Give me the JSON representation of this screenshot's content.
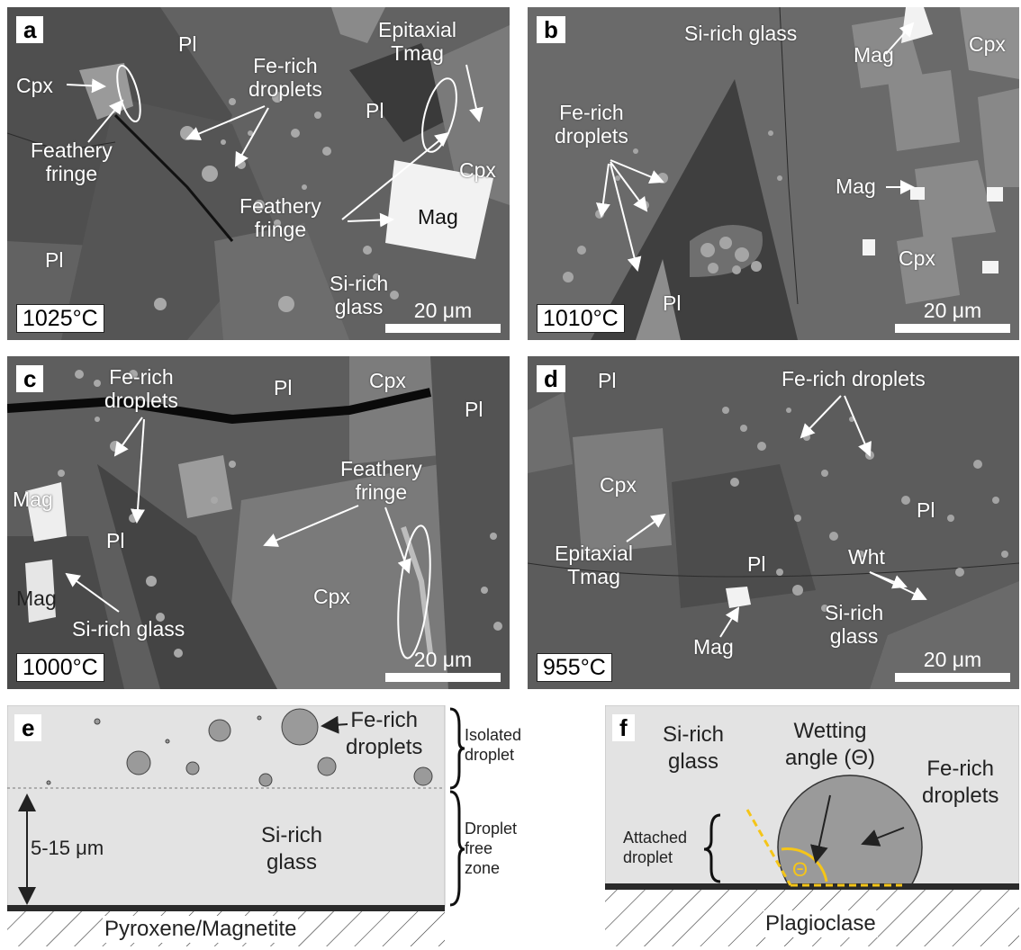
{
  "panels": {
    "a": {
      "letter": "a",
      "temp": "1025°C",
      "scale": "20 μm",
      "labels": {
        "pl_top": "Pl",
        "cpx_left": "Cpx",
        "fe_droplets_1": "Fe-rich",
        "fe_droplets_2": "droplets",
        "epi_1": "Epitaxial",
        "epi_2": "Tmag",
        "pl_mid": "Pl",
        "cpx_right": "Cpx",
        "fringe_l1": "Feathery",
        "fringe_l2": "fringe",
        "fringe_c1": "Feathery",
        "fringe_c2": "fringe",
        "mag": "Mag",
        "pl_bottom": "Pl",
        "glass_1": "Si-rich",
        "glass_2": "glass"
      }
    },
    "b": {
      "letter": "b",
      "temp": "1010°C",
      "scale": "20 μm",
      "labels": {
        "glass": "Si-rich glass",
        "mag_top": "Mag",
        "cpx_top": "Cpx",
        "fe_1": "Fe-rich",
        "fe_2": "droplets",
        "mag_mid": "Mag",
        "cpx_bottom": "Cpx",
        "pl": "Pl"
      }
    },
    "c": {
      "letter": "c",
      "temp": "1000°C",
      "scale": "20 μm",
      "labels": {
        "fe_1": "Fe-rich",
        "fe_2": "droplets",
        "pl_top": "Pl",
        "cpx_top": "Cpx",
        "pl_right": "Pl",
        "fringe_1": "Feathery",
        "fringe_2": "fringe",
        "mag_top": "Mag",
        "pl_left": "Pl",
        "mag_bottom": "Mag",
        "glass": "Si-rich glass",
        "cpx_mid": "Cpx"
      }
    },
    "d": {
      "letter": "d",
      "temp": "955°C",
      "scale": "20 μm",
      "labels": {
        "pl_top": "Pl",
        "fe": "Fe-rich droplets",
        "cpx": "Cpx",
        "pl_right": "Pl",
        "epi_1": "Epitaxial",
        "epi_2": "Tmag",
        "pl_mid": "Pl",
        "wht": "Wht",
        "glass_1": "Si-rich",
        "glass_2": "glass",
        "mag": "Mag"
      }
    },
    "e": {
      "letter": "e",
      "fe_1": "Fe-rich",
      "fe_2": "droplets",
      "iso_1": "Isolated",
      "iso_2": "droplet",
      "dist": "5-15 μm",
      "glass_1": "Si-rich",
      "glass_2": "glass",
      "free_1": "Droplet",
      "free_2": "free",
      "free_3": "zone",
      "substrate": "Pyroxene/Magnetite"
    },
    "f": {
      "letter": "f",
      "glass_1": "Si-rich",
      "glass_2": "glass",
      "wet_1": "Wetting",
      "wet_2": "angle (Θ)",
      "fe_1": "Fe-rich",
      "fe_2": "droplets",
      "att_1": "Attached",
      "att_2": "droplet",
      "theta": "Θ",
      "substrate": "Plagioclase"
    }
  },
  "colors": {
    "theta_highlight": "#f5c518",
    "glass": "#e3e3e3",
    "droplet": "#9a9a9a"
  }
}
